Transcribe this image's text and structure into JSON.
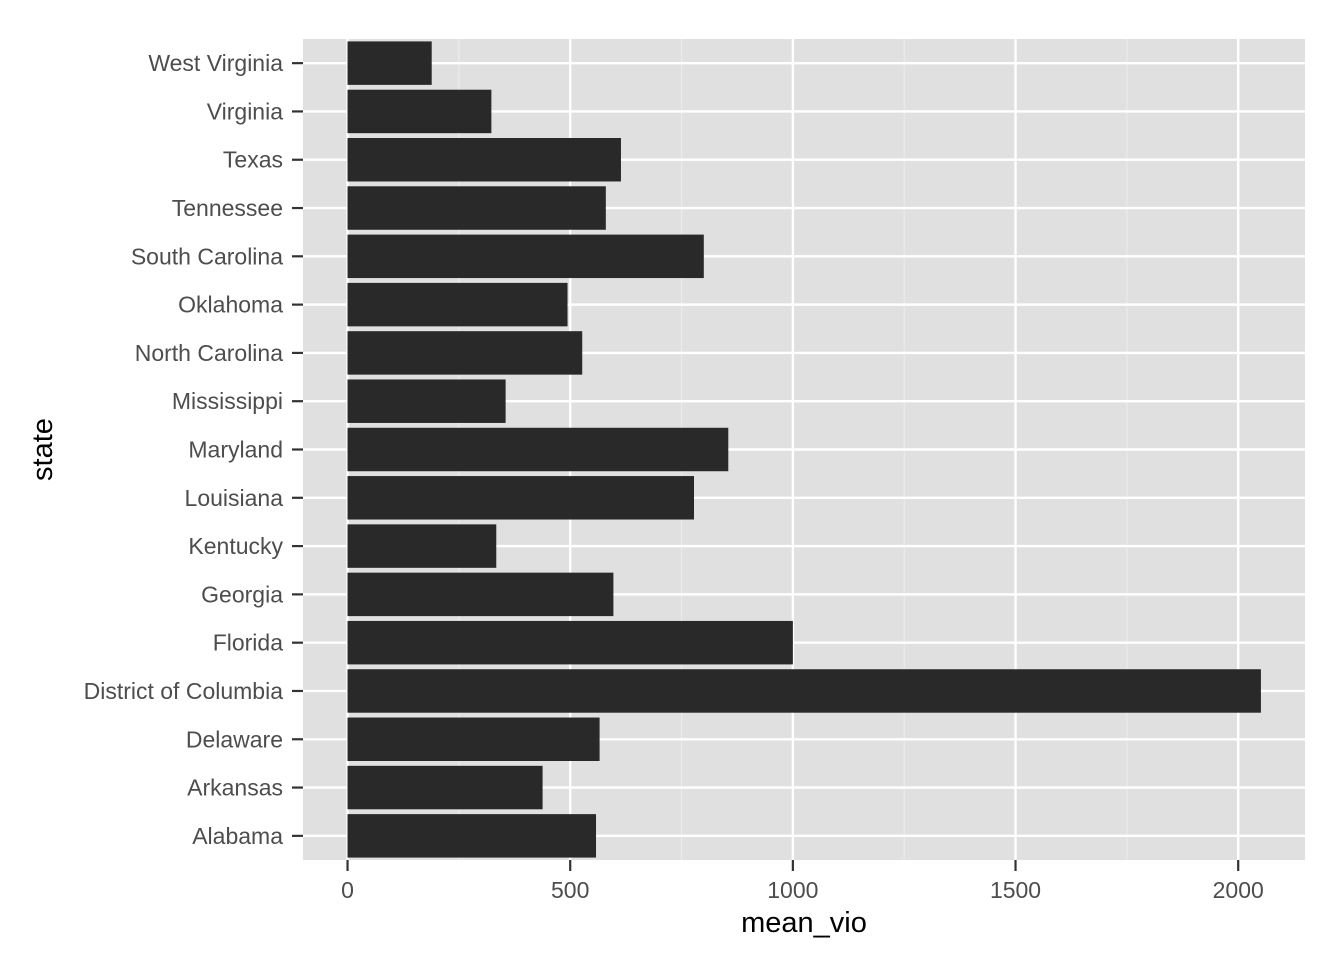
{
  "chart_data": {
    "type": "bar",
    "orientation": "horizontal",
    "xlabel": "mean_vio",
    "ylabel": "state",
    "categories": [
      "Alabama",
      "Arkansas",
      "Delaware",
      "District of Columbia",
      "Florida",
      "Georgia",
      "Kentucky",
      "Louisiana",
      "Maryland",
      "Mississippi",
      "North Carolina",
      "Oklahoma",
      "South Carolina",
      "Tennessee",
      "Texas",
      "Virginia",
      "West Virginia"
    ],
    "values": [
      558,
      438,
      566,
      2051,
      1000,
      597,
      334,
      778,
      855,
      355,
      527,
      494,
      800,
      580,
      614,
      323,
      189
    ],
    "xlim": [
      -100,
      2150
    ],
    "xticks": [
      0,
      500,
      1000,
      1500,
      2000
    ],
    "xtick_labels": [
      "0",
      "500",
      "1000",
      "1500",
      "2000"
    ],
    "grid": true,
    "colors": {
      "panel_background": "#e0e0e0",
      "grid_major": "#ffffff",
      "grid_minor": "#ebebeb",
      "bar_fill": "#292929",
      "tick_label": "#4d4d4d",
      "tick_mark": "#333333",
      "axis_title": "#000000"
    }
  }
}
